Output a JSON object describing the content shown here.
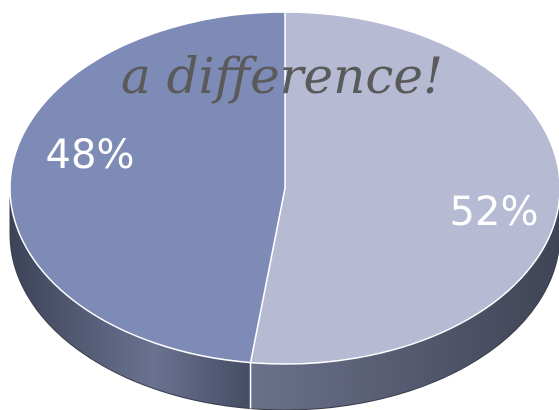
{
  "chart_data": {
    "type": "pie",
    "style": "3d",
    "title": "a difference!",
    "slices": [
      {
        "label": "52%",
        "value": 52,
        "color": "#b6bad3",
        "side_color": "#5e6272"
      },
      {
        "label": "48%",
        "value": 48,
        "color": "#7e8bb6",
        "side_color": "#4a526e"
      }
    ]
  }
}
